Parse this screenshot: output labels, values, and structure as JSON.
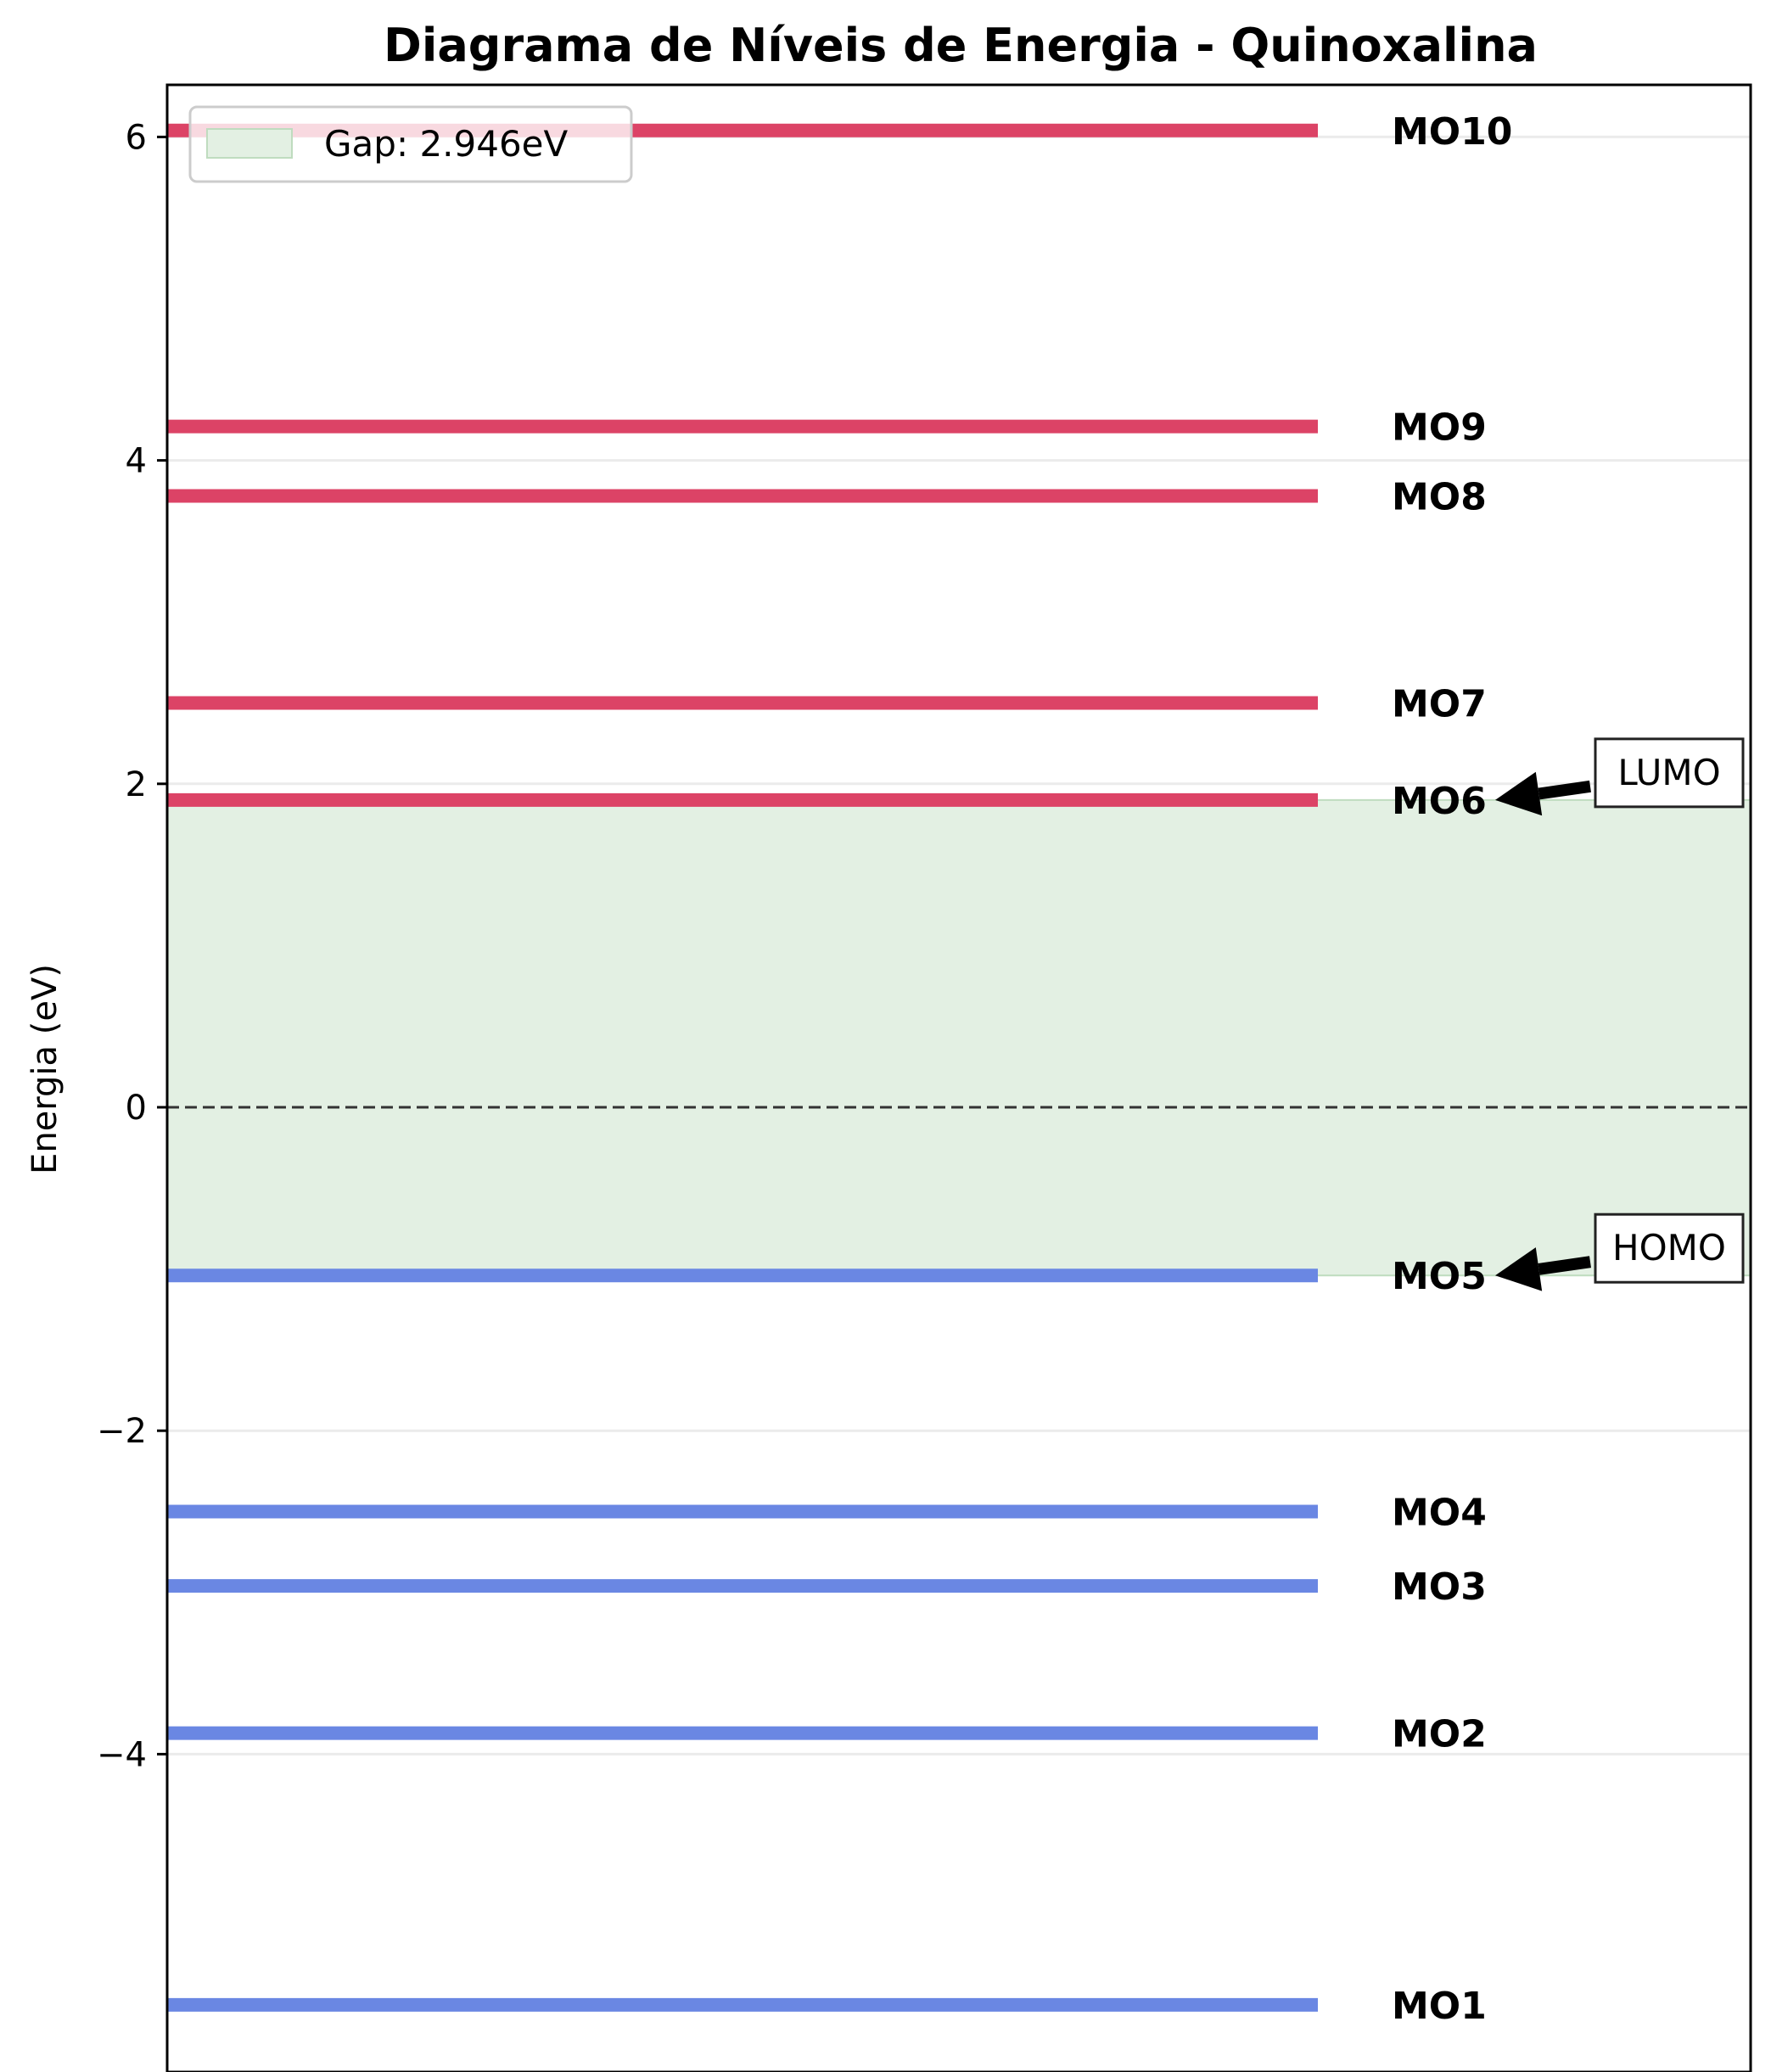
{
  "chart_data": {
    "type": "energy-level",
    "title": "Diagrama de Níveis de Energia - Quinoxalina",
    "xlabel": "",
    "ylabel": "Energia (eV)",
    "ylim": [
      -5.6,
      6.3
    ],
    "yticks": [
      6,
      4,
      2,
      0,
      -2,
      -4
    ],
    "ytick_labels": [
      "6",
      "4",
      "2",
      "0",
      "−2",
      "−4"
    ],
    "grid": "horizontal",
    "reference_line": 0,
    "levels": [
      {
        "label": "MO1",
        "energy": -5.55,
        "occupied": true
      },
      {
        "label": "MO2",
        "energy": -3.87,
        "occupied": true
      },
      {
        "label": "MO3",
        "energy": -2.96,
        "occupied": true
      },
      {
        "label": "MO4",
        "energy": -2.5,
        "occupied": true
      },
      {
        "label": "MO5",
        "energy": -1.04,
        "occupied": true
      },
      {
        "label": "MO6",
        "energy": 1.9,
        "occupied": false
      },
      {
        "label": "MO7",
        "energy": 2.5,
        "occupied": false
      },
      {
        "label": "MO8",
        "energy": 3.78,
        "occupied": false
      },
      {
        "label": "MO9",
        "energy": 4.21,
        "occupied": false
      },
      {
        "label": "MO10",
        "energy": 6.04,
        "occupied": false
      }
    ],
    "gap": {
      "from": -1.04,
      "to": 1.9,
      "label": "Gap: 2.946eV"
    },
    "annotations": [
      {
        "text": "LUMO",
        "target": "MO6"
      },
      {
        "text": "HOMO",
        "target": "MO5"
      }
    ],
    "legend": {
      "position": "top-left",
      "entries": [
        "Gap: 2.946eV"
      ]
    },
    "colors": {
      "occupied": "#6a87e3",
      "unoccupied": "#dc4366",
      "gap_fill": "#e3f0e3",
      "gap_edge": "#bfdcbf",
      "zero_line": "#333333",
      "grid": "#ebebeb"
    }
  }
}
